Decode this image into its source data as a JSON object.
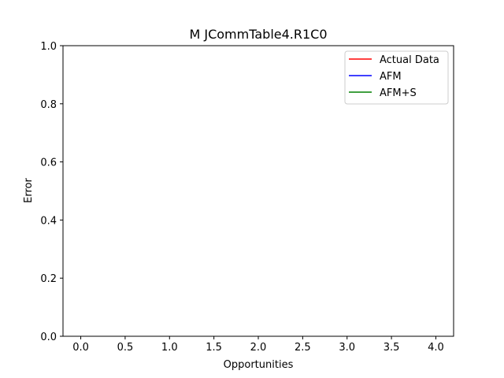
{
  "chart_data": {
    "type": "line",
    "title": "M  JCommTable4.R1C0",
    "xlabel": "Opportunities",
    "ylabel": "Error",
    "xlim": [
      -0.2,
      4.2
    ],
    "ylim": [
      0.0,
      1.0
    ],
    "xticks": [
      0.0,
      0.5,
      1.0,
      1.5,
      2.0,
      2.5,
      3.0,
      3.5,
      4.0
    ],
    "xtick_labels": [
      "0.0",
      "0.5",
      "1.0",
      "1.5",
      "2.0",
      "2.5",
      "3.0",
      "3.5",
      "4.0"
    ],
    "yticks": [
      0.0,
      0.2,
      0.4,
      0.6,
      0.8,
      1.0
    ],
    "ytick_labels": [
      "0.0",
      "0.2",
      "0.4",
      "0.6",
      "0.8",
      "1.0"
    ],
    "grid": false,
    "legend_position": "top-right",
    "series": [
      {
        "name": "Actual Data",
        "color": "#ff0000",
        "x": [],
        "y": []
      },
      {
        "name": "AFM",
        "color": "#0000ff",
        "x": [],
        "y": []
      },
      {
        "name": "AFM+S",
        "color": "#008000",
        "x": [],
        "y": []
      }
    ]
  }
}
